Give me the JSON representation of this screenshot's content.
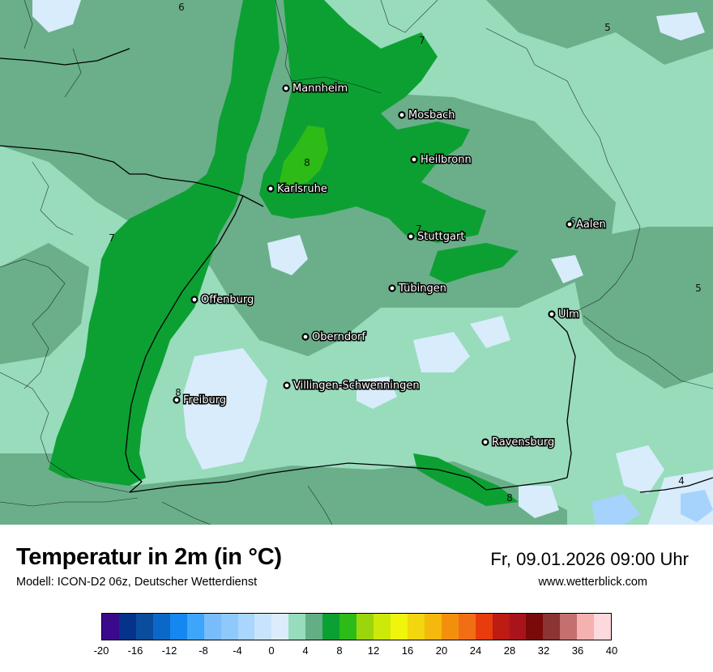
{
  "map": {
    "cities": [
      {
        "name": "Mannheim"
      },
      {
        "name": "Mosbach"
      },
      {
        "name": "Heilbronn"
      },
      {
        "name": "Karlsruhe"
      },
      {
        "name": "Stuttgart"
      },
      {
        "name": "Aalen"
      },
      {
        "name": "Tübingen"
      },
      {
        "name": "Offenburg"
      },
      {
        "name": "Ulm"
      },
      {
        "name": "Oberndorf"
      },
      {
        "name": "Villingen-Schwenningen"
      },
      {
        "name": "Freiburg"
      },
      {
        "name": "Ravensburg"
      }
    ],
    "isoline_labels": [
      {
        "value": "6"
      },
      {
        "value": "7"
      },
      {
        "value": "5"
      },
      {
        "value": "8"
      },
      {
        "value": "7"
      },
      {
        "value": "6"
      },
      {
        "value": "7"
      },
      {
        "value": "5"
      },
      {
        "value": "8"
      },
      {
        "value": "8"
      },
      {
        "value": "4"
      }
    ],
    "colors": {
      "land_light": "#98dcbc",
      "land_mid": "#6aaf8a",
      "green": "#0ca033",
      "bright_green": "#2dbb17",
      "very_light_blue": "#d8ecfc",
      "light_blue": "#a6d3fb"
    }
  },
  "footer": {
    "title": "Temperatur in 2m (in °C)",
    "model": "Modell: ICON-D2 06z, Deutscher Wetterdienst",
    "datetime": "Fr, 09.01.2026 09:00 Uhr",
    "website": "www.wetterblick.com"
  },
  "legend": {
    "colors": [
      "#3b0a8c",
      "#05328a",
      "#0a4d9c",
      "#0c68c6",
      "#1487f0",
      "#3ea6fa",
      "#78bcfb",
      "#8fc8fa",
      "#a9d6fc",
      "#c8e4fc",
      "#dcecfd",
      "#96dcbd",
      "#64ae86",
      "#0ba033",
      "#2dbb17",
      "#9bd60d",
      "#cde90a",
      "#f0f50c",
      "#f2d60e",
      "#f4b90c",
      "#f2900e",
      "#f26e14",
      "#e83c0c",
      "#bc1c14",
      "#a8141c",
      "#7a0a0a",
      "#8c3434",
      "#c47070",
      "#f5b0b0",
      "#fdd8dc"
    ],
    "ticks": [
      "-20",
      "-16",
      "-12",
      "-8",
      "-4",
      "0",
      "4",
      "8",
      "12",
      "16",
      "20",
      "24",
      "28",
      "32",
      "36",
      "40"
    ]
  }
}
